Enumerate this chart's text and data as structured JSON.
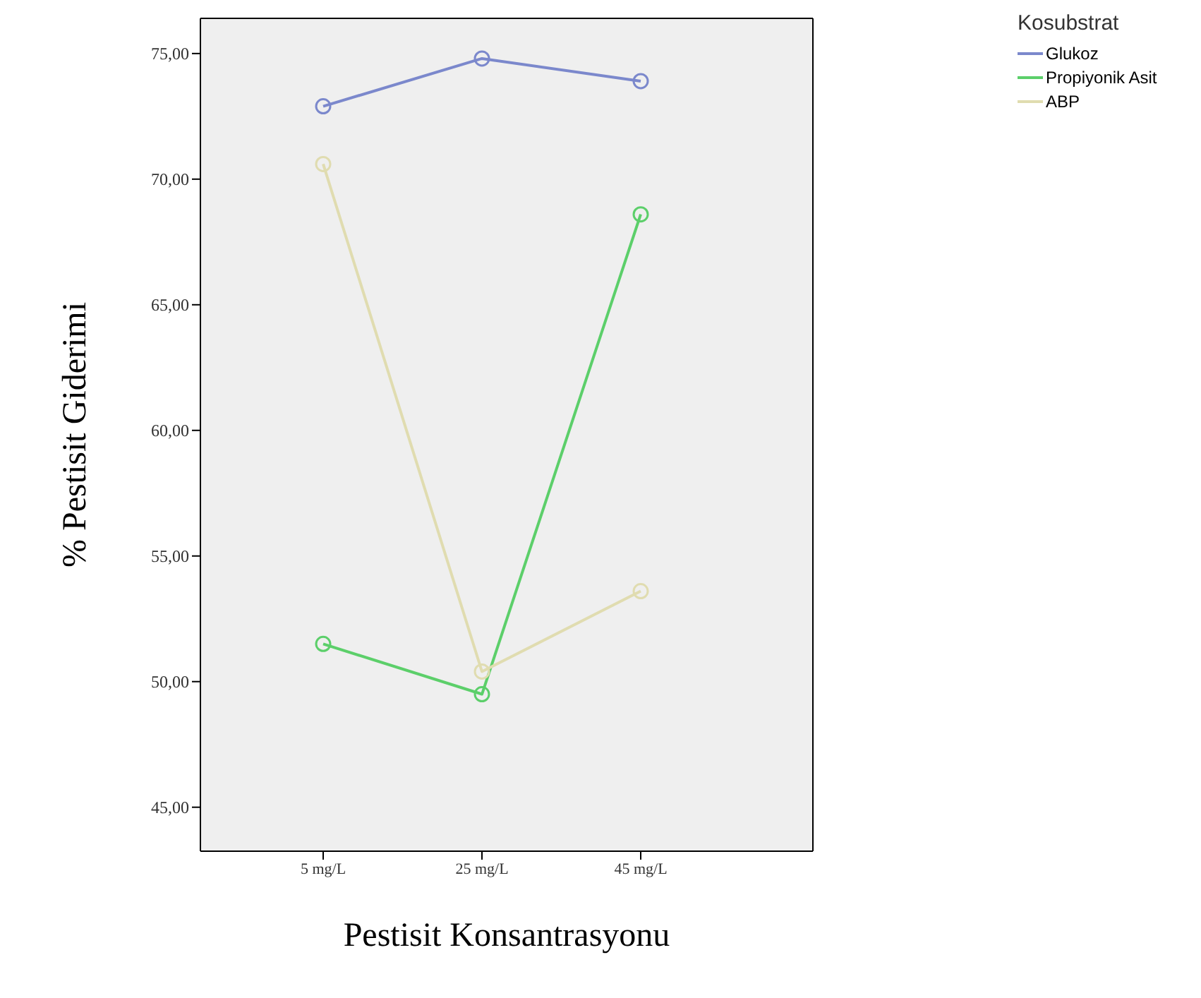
{
  "chart_data": {
    "type": "line",
    "xlabel": "Pestisit Konsantrasyonu",
    "ylabel": "% Pestisit Giderimi",
    "legend_title": "Kosubstrat",
    "categories": [
      "5 mg/L",
      "25 mg/L",
      "45 mg/L"
    ],
    "series": [
      {
        "name": "Glukoz",
        "color": "#7b88cc",
        "values": [
          72.9,
          74.8,
          73.9
        ]
      },
      {
        "name": "Propiyonik Asit",
        "color": "#5ccf6a",
        "values": [
          51.5,
          49.5,
          68.6
        ]
      },
      {
        "name": "ABP",
        "color": "#e0dcb0",
        "values": [
          70.6,
          50.4,
          53.6
        ]
      }
    ],
    "ylim": [
      43.25,
      76.4
    ],
    "yticks": [
      {
        "value": 45,
        "label": "45,00"
      },
      {
        "value": 50,
        "label": "50,00"
      },
      {
        "value": 55,
        "label": "55,00"
      },
      {
        "value": 60,
        "label": "60,00"
      },
      {
        "value": 65,
        "label": "65,00"
      },
      {
        "value": 70,
        "label": "70,00"
      },
      {
        "value": 75,
        "label": "75,00"
      }
    ],
    "grid": false,
    "legend": "top right",
    "marker": "circle",
    "line_style": "solid"
  }
}
